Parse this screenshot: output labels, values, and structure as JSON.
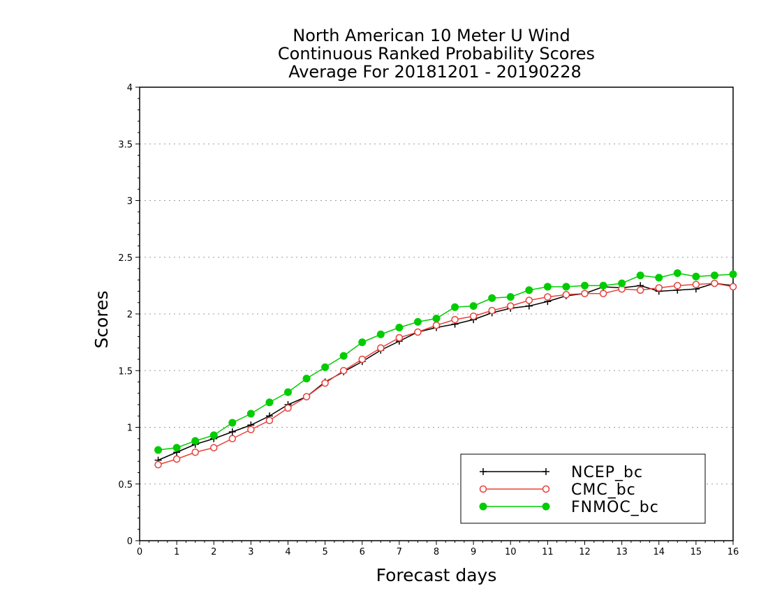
{
  "chart_data": {
    "type": "line",
    "title": [
      "North American 10 Meter U Wind",
      "Continuous Ranked Probability Scores",
      "Average For 20181201 - 20190228"
    ],
    "xlabel": "Forecast days",
    "ylabel": "Scores",
    "xlim": [
      0,
      16
    ],
    "ylim": [
      0,
      4
    ],
    "x_ticks": [
      "0",
      "1",
      "2",
      "3",
      "4",
      "5",
      "6",
      "7",
      "8",
      "9",
      "10",
      "11",
      "12",
      "13",
      "14",
      "15",
      "16"
    ],
    "y_ticks": [
      "0",
      "0.5",
      "1",
      "1.5",
      "2",
      "2.5",
      "3",
      "3.5",
      "4"
    ],
    "grid": "horizontal-dotted",
    "legend_position": "bottom-right",
    "x": [
      0.5,
      1,
      1.5,
      2,
      2.5,
      3,
      3.5,
      4,
      4.5,
      5,
      5.5,
      6,
      6.5,
      7,
      7.5,
      8,
      8.5,
      9,
      9.5,
      10,
      10.5,
      11,
      11.5,
      12,
      12.5,
      13,
      13.5,
      14,
      14.5,
      15,
      15.5,
      16
    ],
    "series": [
      {
        "name": "NCEP_bc",
        "color": "#000000",
        "marker": "plus",
        "values": [
          0.71,
          0.78,
          0.85,
          0.9,
          0.96,
          1.02,
          1.1,
          1.2,
          1.27,
          1.4,
          1.49,
          1.58,
          1.68,
          1.76,
          1.84,
          1.88,
          1.91,
          1.95,
          2.01,
          2.05,
          2.07,
          2.11,
          2.16,
          2.18,
          2.24,
          2.23,
          2.25,
          2.2,
          2.21,
          2.22,
          2.27,
          2.25
        ]
      },
      {
        "name": "CMC_bc",
        "color": "#e8403a",
        "marker": "open-circle",
        "values": [
          0.67,
          0.72,
          0.78,
          0.82,
          0.9,
          0.98,
          1.06,
          1.17,
          1.27,
          1.39,
          1.5,
          1.6,
          1.7,
          1.79,
          1.84,
          1.9,
          1.95,
          1.98,
          2.03,
          2.07,
          2.12,
          2.15,
          2.17,
          2.18,
          2.18,
          2.22,
          2.21,
          2.23,
          2.25,
          2.26,
          2.27,
          2.24
        ]
      },
      {
        "name": "FNMOC_bc",
        "color": "#00cc00",
        "marker": "filled-circle",
        "values": [
          0.8,
          0.82,
          0.88,
          0.93,
          1.04,
          1.12,
          1.22,
          1.31,
          1.43,
          1.53,
          1.63,
          1.75,
          1.82,
          1.88,
          1.93,
          1.96,
          2.06,
          2.07,
          2.14,
          2.15,
          2.21,
          2.24,
          2.24,
          2.25,
          2.25,
          2.27,
          2.34,
          2.32,
          2.36,
          2.33,
          2.34,
          2.35
        ]
      }
    ]
  }
}
